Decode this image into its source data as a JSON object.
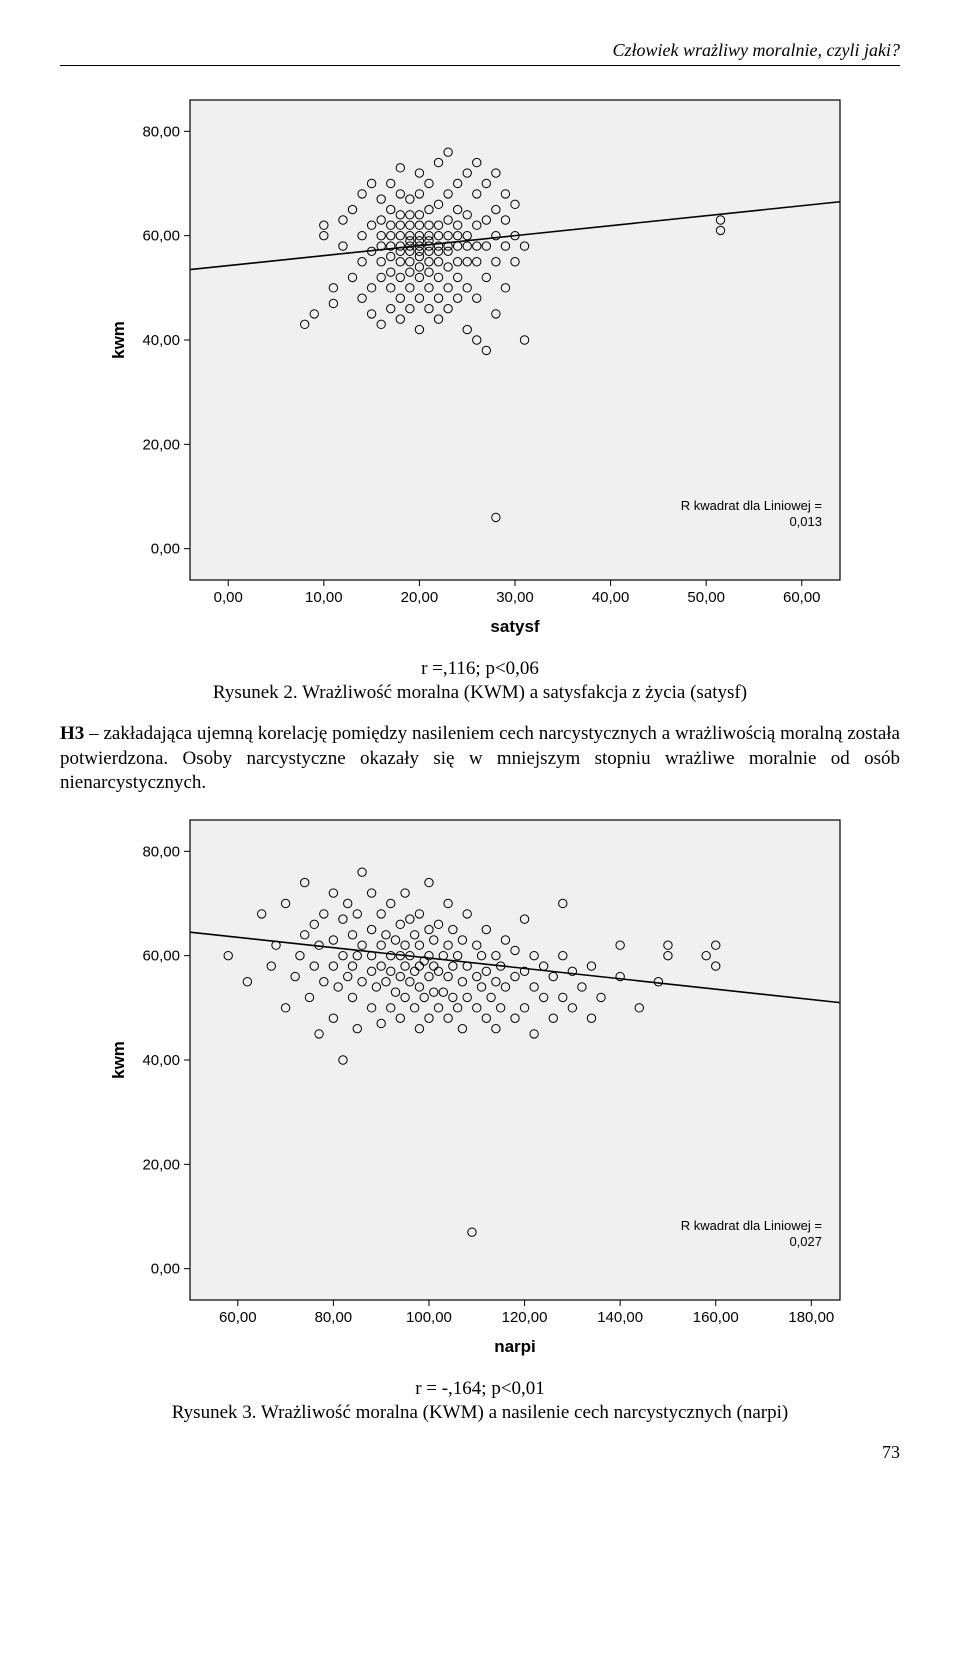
{
  "header": {
    "running_title": "Człowiek wrażliwy moralnie, czyli jaki?"
  },
  "figure1": {
    "type": "scatter",
    "xlabel": "satysf",
    "ylabel": "kwm",
    "xlim": [
      -4,
      64
    ],
    "ylim": [
      -6,
      86
    ],
    "xticks": [
      0,
      10,
      20,
      30,
      40,
      50,
      60
    ],
    "yticks": [
      0,
      20,
      40,
      60,
      80
    ],
    "xtick_labels": [
      "0,00",
      "10,00",
      "20,00",
      "30,00",
      "40,00",
      "50,00",
      "60,00"
    ],
    "ytick_labels": [
      "0,00",
      "20,00",
      "40,00",
      "60,00",
      "80,00"
    ],
    "r2_label": "R kwadrat dla Liniowej =\n0,013",
    "reg_line": {
      "x1": -4,
      "y1": 53.5,
      "x2": 64,
      "y2": 66.5
    },
    "marker_stroke": "#000000",
    "marker_fill": "none",
    "plot_bg": "#f0f0f0",
    "frame_stroke": "#000000",
    "axis_font": 15,
    "label_font": 17,
    "caption_stat": "r =,116; p<0,06",
    "caption": "Rysunek 2. Wrażliwość moralna (KWM) a satysfakcja z życia (satysf)",
    "points": [
      [
        8,
        43
      ],
      [
        9,
        45
      ],
      [
        10,
        60
      ],
      [
        10,
        62
      ],
      [
        11,
        47
      ],
      [
        11,
        50
      ],
      [
        12,
        58
      ],
      [
        12,
        63
      ],
      [
        13,
        52
      ],
      [
        13,
        65
      ],
      [
        14,
        48
      ],
      [
        14,
        55
      ],
      [
        14,
        60
      ],
      [
        14,
        68
      ],
      [
        15,
        45
      ],
      [
        15,
        50
      ],
      [
        15,
        57
      ],
      [
        15,
        62
      ],
      [
        15,
        70
      ],
      [
        16,
        43
      ],
      [
        16,
        52
      ],
      [
        16,
        55
      ],
      [
        16,
        58
      ],
      [
        16,
        60
      ],
      [
        16,
        63
      ],
      [
        16,
        67
      ],
      [
        17,
        46
      ],
      [
        17,
        50
      ],
      [
        17,
        53
      ],
      [
        17,
        56
      ],
      [
        17,
        58
      ],
      [
        17,
        60
      ],
      [
        17,
        62
      ],
      [
        17,
        65
      ],
      [
        17,
        70
      ],
      [
        18,
        44
      ],
      [
        18,
        48
      ],
      [
        18,
        52
      ],
      [
        18,
        55
      ],
      [
        18,
        57
      ],
      [
        18,
        58
      ],
      [
        18,
        60
      ],
      [
        18,
        62
      ],
      [
        18,
        64
      ],
      [
        18,
        68
      ],
      [
        18,
        73
      ],
      [
        19,
        46
      ],
      [
        19,
        50
      ],
      [
        19,
        53
      ],
      [
        19,
        55
      ],
      [
        19,
        57
      ],
      [
        19,
        58
      ],
      [
        19,
        59
      ],
      [
        19,
        60
      ],
      [
        19,
        62
      ],
      [
        19,
        64
      ],
      [
        19,
        67
      ],
      [
        20,
        42
      ],
      [
        20,
        48
      ],
      [
        20,
        52
      ],
      [
        20,
        54
      ],
      [
        20,
        56
      ],
      [
        20,
        57
      ],
      [
        20,
        58
      ],
      [
        20,
        59
      ],
      [
        20,
        60
      ],
      [
        20,
        62
      ],
      [
        20,
        64
      ],
      [
        20,
        68
      ],
      [
        20,
        72
      ],
      [
        21,
        46
      ],
      [
        21,
        50
      ],
      [
        21,
        53
      ],
      [
        21,
        55
      ],
      [
        21,
        57
      ],
      [
        21,
        58
      ],
      [
        21,
        59
      ],
      [
        21,
        60
      ],
      [
        21,
        62
      ],
      [
        21,
        65
      ],
      [
        21,
        70
      ],
      [
        22,
        44
      ],
      [
        22,
        48
      ],
      [
        22,
        52
      ],
      [
        22,
        55
      ],
      [
        22,
        57
      ],
      [
        22,
        58
      ],
      [
        22,
        60
      ],
      [
        22,
        62
      ],
      [
        22,
        66
      ],
      [
        22,
        74
      ],
      [
        23,
        46
      ],
      [
        23,
        50
      ],
      [
        23,
        54
      ],
      [
        23,
        57
      ],
      [
        23,
        58
      ],
      [
        23,
        60
      ],
      [
        23,
        63
      ],
      [
        23,
        68
      ],
      [
        23,
        76
      ],
      [
        24,
        48
      ],
      [
        24,
        52
      ],
      [
        24,
        55
      ],
      [
        24,
        58
      ],
      [
        24,
        60
      ],
      [
        24,
        62
      ],
      [
        24,
        65
      ],
      [
        24,
        70
      ],
      [
        25,
        42
      ],
      [
        25,
        50
      ],
      [
        25,
        55
      ],
      [
        25,
        58
      ],
      [
        25,
        60
      ],
      [
        25,
        64
      ],
      [
        25,
        72
      ],
      [
        26,
        40
      ],
      [
        26,
        48
      ],
      [
        26,
        55
      ],
      [
        26,
        58
      ],
      [
        26,
        62
      ],
      [
        26,
        68
      ],
      [
        26,
        74
      ],
      [
        27,
        38
      ],
      [
        27,
        52
      ],
      [
        27,
        58
      ],
      [
        27,
        63
      ],
      [
        27,
        70
      ],
      [
        28,
        6
      ],
      [
        28,
        45
      ],
      [
        28,
        55
      ],
      [
        28,
        60
      ],
      [
        28,
        65
      ],
      [
        28,
        72
      ],
      [
        29,
        50
      ],
      [
        29,
        58
      ],
      [
        29,
        63
      ],
      [
        29,
        68
      ],
      [
        30,
        55
      ],
      [
        30,
        60
      ],
      [
        30,
        66
      ],
      [
        31,
        40
      ],
      [
        31,
        58
      ],
      [
        51.5,
        61
      ],
      [
        51.5,
        63
      ]
    ]
  },
  "paragraph": {
    "hypothesis_tag": "H3",
    "text_before": " – zakładająca ujemną korelację pomiędzy nasileniem cech narcystycznych a wrażliwością moralną została potwierdzona. Osoby narcystyczne okazały się w mniejszym stopniu wrażliwe moralnie od osób nienarcystycznych."
  },
  "figure2": {
    "type": "scatter",
    "xlabel": "narpi",
    "ylabel": "kwm",
    "xlim": [
      50,
      186
    ],
    "ylim": [
      -6,
      86
    ],
    "xticks": [
      60,
      80,
      100,
      120,
      140,
      160,
      180
    ],
    "yticks": [
      0,
      20,
      40,
      60,
      80
    ],
    "xtick_labels": [
      "60,00",
      "80,00",
      "100,00",
      "120,00",
      "140,00",
      "160,00",
      "180,00"
    ],
    "ytick_labels": [
      "0,00",
      "20,00",
      "40,00",
      "60,00",
      "80,00"
    ],
    "r2_label": "R kwadrat dla Liniowej =\n0,027",
    "reg_line": {
      "x1": 50,
      "y1": 64.5,
      "x2": 186,
      "y2": 51.0
    },
    "marker_stroke": "#000000",
    "marker_fill": "none",
    "plot_bg": "#f0f0f0",
    "frame_stroke": "#000000",
    "axis_font": 15,
    "label_font": 17,
    "caption_stat": "r = -,164; p<0,01",
    "caption": "Rysunek 3. Wrażliwość moralna (KWM) a nasilenie cech narcystycznych (narpi)",
    "points": [
      [
        58,
        60
      ],
      [
        62,
        55
      ],
      [
        65,
        68
      ],
      [
        67,
        58
      ],
      [
        68,
        62
      ],
      [
        70,
        50
      ],
      [
        70,
        70
      ],
      [
        72,
        56
      ],
      [
        73,
        60
      ],
      [
        74,
        64
      ],
      [
        74,
        74
      ],
      [
        75,
        52
      ],
      [
        76,
        58
      ],
      [
        76,
        66
      ],
      [
        77,
        45
      ],
      [
        77,
        62
      ],
      [
        78,
        55
      ],
      [
        78,
        68
      ],
      [
        80,
        48
      ],
      [
        80,
        58
      ],
      [
        80,
        63
      ],
      [
        80,
        72
      ],
      [
        81,
        54
      ],
      [
        82,
        40
      ],
      [
        82,
        60
      ],
      [
        82,
        67
      ],
      [
        83,
        56
      ],
      [
        83,
        70
      ],
      [
        84,
        52
      ],
      [
        84,
        58
      ],
      [
        84,
        64
      ],
      [
        85,
        46
      ],
      [
        85,
        60
      ],
      [
        85,
        68
      ],
      [
        86,
        55
      ],
      [
        86,
        62
      ],
      [
        86,
        76
      ],
      [
        88,
        50
      ],
      [
        88,
        57
      ],
      [
        88,
        60
      ],
      [
        88,
        65
      ],
      [
        88,
        72
      ],
      [
        89,
        54
      ],
      [
        90,
        47
      ],
      [
        90,
        58
      ],
      [
        90,
        62
      ],
      [
        90,
        68
      ],
      [
        91,
        55
      ],
      [
        91,
        64
      ],
      [
        92,
        50
      ],
      [
        92,
        57
      ],
      [
        92,
        60
      ],
      [
        92,
        70
      ],
      [
        93,
        53
      ],
      [
        93,
        63
      ],
      [
        94,
        48
      ],
      [
        94,
        56
      ],
      [
        94,
        60
      ],
      [
        94,
        66
      ],
      [
        95,
        52
      ],
      [
        95,
        58
      ],
      [
        95,
        62
      ],
      [
        95,
        72
      ],
      [
        96,
        55
      ],
      [
        96,
        60
      ],
      [
        96,
        67
      ],
      [
        97,
        50
      ],
      [
        97,
        57
      ],
      [
        97,
        64
      ],
      [
        98,
        46
      ],
      [
        98,
        54
      ],
      [
        98,
        58
      ],
      [
        98,
        62
      ],
      [
        98,
        68
      ],
      [
        99,
        52
      ],
      [
        99,
        59
      ],
      [
        100,
        48
      ],
      [
        100,
        56
      ],
      [
        100,
        60
      ],
      [
        100,
        65
      ],
      [
        100,
        74
      ],
      [
        101,
        53
      ],
      [
        101,
        58
      ],
      [
        101,
        63
      ],
      [
        102,
        50
      ],
      [
        102,
        57
      ],
      [
        102,
        66
      ],
      [
        103,
        53
      ],
      [
        103,
        60
      ],
      [
        104,
        48
      ],
      [
        104,
        56
      ],
      [
        104,
        62
      ],
      [
        104,
        70
      ],
      [
        105,
        52
      ],
      [
        105,
        58
      ],
      [
        105,
        65
      ],
      [
        106,
        50
      ],
      [
        106,
        60
      ],
      [
        107,
        46
      ],
      [
        107,
        55
      ],
      [
        107,
        63
      ],
      [
        108,
        52
      ],
      [
        108,
        58
      ],
      [
        108,
        68
      ],
      [
        109,
        7
      ],
      [
        110,
        50
      ],
      [
        110,
        56
      ],
      [
        110,
        62
      ],
      [
        111,
        54
      ],
      [
        111,
        60
      ],
      [
        112,
        48
      ],
      [
        112,
        57
      ],
      [
        112,
        65
      ],
      [
        113,
        52
      ],
      [
        114,
        46
      ],
      [
        114,
        55
      ],
      [
        114,
        60
      ],
      [
        115,
        50
      ],
      [
        115,
        58
      ],
      [
        116,
        54
      ],
      [
        116,
        63
      ],
      [
        118,
        48
      ],
      [
        118,
        56
      ],
      [
        118,
        61
      ],
      [
        120,
        50
      ],
      [
        120,
        57
      ],
      [
        120,
        67
      ],
      [
        122,
        45
      ],
      [
        122,
        54
      ],
      [
        122,
        60
      ],
      [
        124,
        52
      ],
      [
        124,
        58
      ],
      [
        126,
        48
      ],
      [
        126,
        56
      ],
      [
        128,
        52
      ],
      [
        128,
        60
      ],
      [
        128,
        70
      ],
      [
        130,
        50
      ],
      [
        130,
        57
      ],
      [
        132,
        54
      ],
      [
        134,
        48
      ],
      [
        134,
        58
      ],
      [
        136,
        52
      ],
      [
        140,
        56
      ],
      [
        140,
        62
      ],
      [
        144,
        50
      ],
      [
        148,
        55
      ],
      [
        150,
        60
      ],
      [
        150,
        62
      ],
      [
        158,
        60
      ],
      [
        160,
        58
      ],
      [
        160,
        62
      ]
    ]
  },
  "page_number": "73"
}
